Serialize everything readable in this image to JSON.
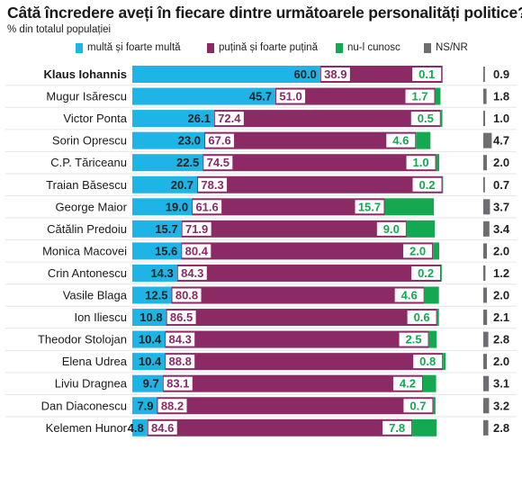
{
  "title": "Câtă încredere aveți în fiecare dintre următoarele personalități politice?",
  "subtitle": "% din totalul populației",
  "colors": {
    "multa": "#1eb4e6",
    "putina": "#8c2a66",
    "nu_cunosc": "#14a850",
    "nsnr": "#6d6e71"
  },
  "chart_data": {
    "type": "bar",
    "stacked": true,
    "orientation": "horizontal",
    "categories": [
      "Klaus Iohannis",
      "Mugur Isărescu",
      "Victor Ponta",
      "Sorin Oprescu",
      "C.P. Tăriceanu",
      "Traian Băsescu",
      "George Maior",
      "Cătălin Predoiu",
      "Monica Macovei",
      "Crin Antonescu",
      "Vasile Blaga",
      "Ion Iliescu",
      "Theodor Stolojan",
      "Elena Udrea",
      "Liviu Dragnea",
      "Dan Diaconescu",
      "Kelemen Hunor"
    ],
    "highlighted_category": "Klaus Iohannis",
    "series": [
      {
        "name": "multă și foarte multă",
        "color": "#1eb4e6",
        "values": [
          60.0,
          45.7,
          26.1,
          23.0,
          22.5,
          20.7,
          19.0,
          15.7,
          15.6,
          14.3,
          12.5,
          10.8,
          10.4,
          10.4,
          9.7,
          7.9,
          4.8
        ]
      },
      {
        "name": "puțină și foarte puțină",
        "color": "#8c2a66",
        "values": [
          38.9,
          51.0,
          72.4,
          67.6,
          74.5,
          78.3,
          61.6,
          71.9,
          80.4,
          84.3,
          80.8,
          86.5,
          84.3,
          88.8,
          83.1,
          88.2,
          84.6
        ]
      },
      {
        "name": "nu-l cunosc",
        "color": "#14a850",
        "values": [
          0.1,
          1.7,
          0.5,
          4.6,
          1.0,
          0.2,
          15.7,
          9.0,
          2.0,
          0.2,
          4.6,
          0.6,
          2.5,
          0.8,
          4.2,
          0.7,
          7.8
        ]
      },
      {
        "name": "NS/NR",
        "color": "#6d6e71",
        "values": [
          0.9,
          1.8,
          1.0,
          4.7,
          2.0,
          0.7,
          3.7,
          3.4,
          2.0,
          1.2,
          2.0,
          2.1,
          2.8,
          2.0,
          3.1,
          3.2,
          2.8
        ]
      }
    ],
    "value_labels": [
      [
        "60.0",
        "38.9",
        "0.1",
        "0.9"
      ],
      [
        "45.7",
        "51.0",
        "1.7",
        "1.8"
      ],
      [
        "26.1",
        "72.4",
        "0.5",
        "1.0"
      ],
      [
        "23.0",
        "67.6",
        "4.6",
        "4.7"
      ],
      [
        "22.5",
        "74.5",
        "1.0",
        "2.0"
      ],
      [
        "20.7",
        "78.3",
        "0.2",
        "0.7"
      ],
      [
        "19.0",
        "61.6",
        "15.7",
        "3.7"
      ],
      [
        "15.7",
        "71.9",
        "9.0",
        "3.4"
      ],
      [
        "15.6",
        "80.4",
        "2.0",
        "2.0"
      ],
      [
        "14.3",
        "84.3",
        "0.2",
        "1.2"
      ],
      [
        "12.5",
        "80.8",
        "4.6",
        "2.0"
      ],
      [
        "10.8",
        "86.5",
        "0.6",
        "2.1"
      ],
      [
        "10.4",
        "84.3",
        "2.5",
        "2.8"
      ],
      [
        "10.4",
        "88.8",
        "0.8",
        "2.0"
      ],
      [
        "9.7",
        "83.1",
        "4.2",
        "3.1"
      ],
      [
        "7.9",
        "88.2",
        "0.7",
        "3.2"
      ],
      [
        "4.8",
        "84.6",
        "7.8",
        "2.8"
      ]
    ],
    "legend_position": "top",
    "grid": false
  }
}
